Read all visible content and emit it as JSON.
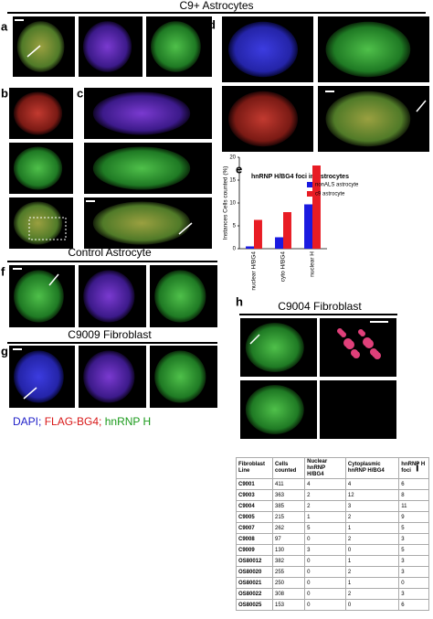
{
  "headings": {
    "c9_astrocytes": "C9+ Astrocytes",
    "control_astrocyte": "Control Astrocyte",
    "c9009_fibroblast": "C9009 Fibroblast",
    "c9004_fibroblast": "C9004 Fibroblast"
  },
  "panel_labels": [
    "a",
    "b",
    "c",
    "d",
    "e",
    "f",
    "g",
    "h",
    "i"
  ],
  "stain_legend": [
    {
      "text": "DAPI;",
      "color": "#2020c8"
    },
    {
      "text": "FLAG-BG4;",
      "color": "#d81818"
    },
    {
      "text": "hnRNP H",
      "color": "#1a9a1a"
    }
  ],
  "chart_data": {
    "type": "bar",
    "title": "hnRNP H/BG4 foci in Astrocytes",
    "y_label": "Instances Cells counted (%)",
    "categories": [
      "nuclear H/BG4",
      "cyto H/BG4",
      "nuclear H"
    ],
    "series": [
      {
        "name": "nonALS astrocyte",
        "color": "#1a1ae0",
        "values": [
          0.5,
          2.5,
          9.7
        ]
      },
      {
        "name": "c9 astrocyte",
        "color": "#e81c24",
        "values": [
          6.3,
          8,
          18.2
        ]
      }
    ],
    "ylim": [
      0,
      20
    ],
    "yticks": [
      0,
      5,
      10,
      15,
      20
    ],
    "grid": false,
    "legend": "upper right"
  },
  "table": {
    "header": [
      "Fibroblast Line",
      "Cells counted",
      "Nuclear hnRNP H/BG4",
      "Cytoplasmic hnRNP H/BG4",
      "hnRNP H foci"
    ],
    "rows": [
      [
        "C9001",
        "411",
        "4",
        "4",
        "6"
      ],
      [
        "C9003",
        "363",
        "2",
        "12",
        "8"
      ],
      [
        "C9004",
        "385",
        "2",
        "3",
        "11"
      ],
      [
        "C9005",
        "215",
        "1",
        "2",
        "9"
      ],
      [
        "C9007",
        "262",
        "5",
        "1",
        "5"
      ],
      [
        "C9008",
        "97",
        "0",
        "2",
        "3"
      ],
      [
        "C9009",
        "130",
        "3",
        "0",
        "5"
      ],
      [
        "OS80012",
        "382",
        "0",
        "1",
        "3"
      ],
      [
        "OS80020",
        "255",
        "0",
        "2",
        "3"
      ],
      [
        "OS80021",
        "250",
        "0",
        "1",
        "0"
      ],
      [
        "OS80022",
        "308",
        "0",
        "2",
        "3"
      ],
      [
        "OS80025",
        "153",
        "0",
        "0",
        "6"
      ]
    ]
  }
}
